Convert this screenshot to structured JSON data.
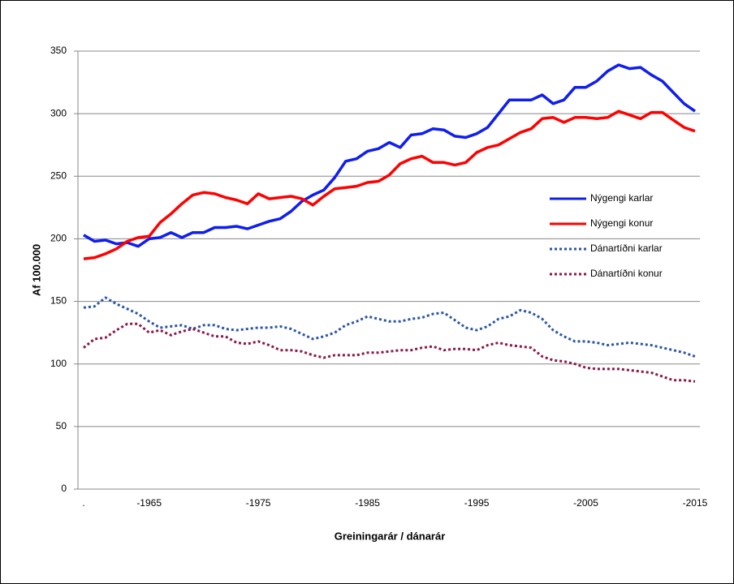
{
  "chart_data": {
    "type": "line",
    "y_label": "Af 100.000",
    "x_label": "Greiningarár / dánarár",
    "categories": [
      ".",
      null,
      null,
      null,
      null,
      null,
      "-1965",
      null,
      null,
      null,
      null,
      null,
      null,
      null,
      null,
      null,
      "-1975",
      null,
      null,
      null,
      null,
      null,
      null,
      null,
      null,
      null,
      "-1985",
      null,
      null,
      null,
      null,
      null,
      null,
      null,
      null,
      null,
      "-1995",
      null,
      null,
      null,
      null,
      null,
      null,
      null,
      null,
      null,
      "-2005",
      null,
      null,
      null,
      null,
      null,
      null,
      null,
      null,
      null,
      "-2015"
    ],
    "ylim": [
      0,
      350
    ],
    "yticks": [
      0,
      50,
      100,
      150,
      200,
      250,
      300,
      350
    ],
    "grid": true,
    "legend": "right",
    "series": [
      {
        "name": "Nýgengi karlar",
        "color": "#0f1ef0",
        "style": "solid",
        "values": [
          203,
          198,
          199,
          196,
          197,
          194,
          200,
          201,
          205,
          201,
          205,
          205,
          209,
          209,
          210,
          208,
          211,
          214,
          216,
          222,
          230,
          235,
          239,
          249,
          262,
          264,
          270,
          272,
          277,
          273,
          283,
          284,
          288,
          287,
          282,
          281,
          284,
          289,
          300,
          311,
          311,
          311,
          315,
          308,
          311,
          321,
          321,
          326,
          334,
          339,
          336,
          337,
          331,
          326,
          317,
          308,
          302
        ]
      },
      {
        "name": "Nýgengi konur",
        "color": "#ff0000",
        "style": "solid",
        "values": [
          184,
          185,
          188,
          192,
          198,
          201,
          202,
          213,
          220,
          228,
          235,
          237,
          236,
          233,
          231,
          228,
          236,
          232,
          233,
          234,
          232,
          227,
          234,
          240,
          241,
          242,
          245,
          246,
          251,
          260,
          264,
          266,
          261,
          261,
          259,
          261,
          269,
          273,
          275,
          280,
          285,
          288,
          296,
          297,
          293,
          297,
          297,
          296,
          297,
          302,
          299,
          296,
          301,
          301,
          295,
          289,
          286
        ]
      },
      {
        "name": "Dánartíðni karlar",
        "color": "#2a56a8",
        "style": "dotted",
        "values": [
          145,
          146,
          153,
          148,
          144,
          140,
          134,
          129,
          130,
          131,
          128,
          131,
          131,
          128,
          127,
          128,
          129,
          129,
          130,
          128,
          124,
          120,
          122,
          125,
          131,
          134,
          138,
          136,
          134,
          134,
          136,
          137,
          140,
          141,
          135,
          129,
          127,
          130,
          136,
          138,
          143,
          141,
          136,
          127,
          122,
          118,
          118,
          117,
          115,
          116,
          117,
          116,
          115,
          113,
          111,
          109,
          106
        ]
      },
      {
        "name": "Dánartíðni konur",
        "color": "#8a1848",
        "style": "dotted",
        "values": [
          113,
          120,
          121,
          127,
          132,
          132,
          125,
          127,
          123,
          126,
          128,
          125,
          122,
          122,
          117,
          116,
          118,
          115,
          111,
          111,
          110,
          107,
          105,
          107,
          107,
          107,
          109,
          109,
          110,
          111,
          111,
          113,
          114,
          111,
          112,
          112,
          111,
          115,
          117,
          115,
          114,
          113,
          106,
          103,
          102,
          100,
          97,
          96,
          96,
          96,
          95,
          94,
          93,
          90,
          87,
          87,
          86
        ]
      }
    ]
  }
}
